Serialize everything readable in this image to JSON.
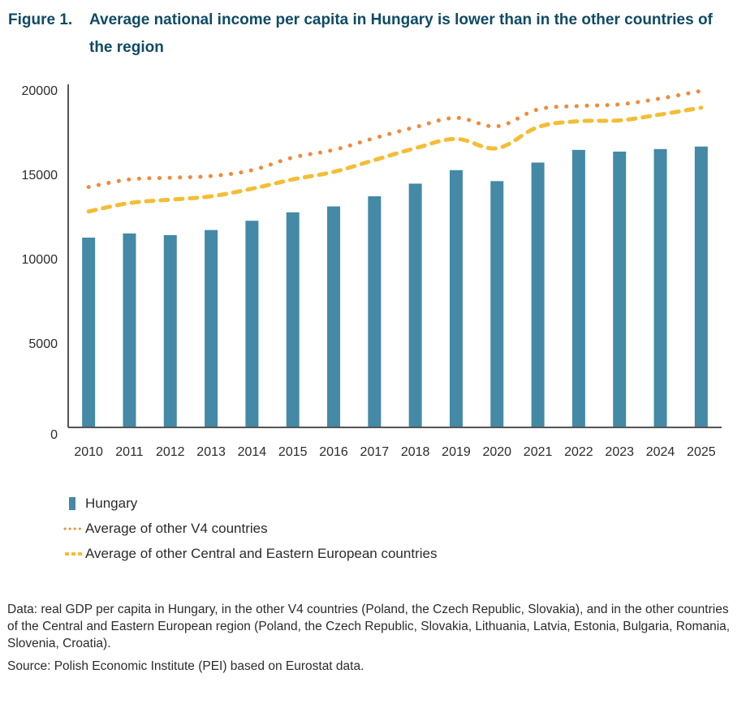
{
  "figure": {
    "number": "Figure 1.",
    "title": "Average national income per capita in Hungary is lower than in the other countries of the region"
  },
  "colors": {
    "hungary": "#4489a6",
    "v4": "#f08a3c",
    "cee": "#f3bd35",
    "axis": "#555555",
    "title": "#0f4a64"
  },
  "chart_data": {
    "type": "bar",
    "title": "Average national income per capita in Hungary is lower than in the other countries of the region",
    "xlabel": "",
    "ylabel": "",
    "ylim": [
      0,
      20000
    ],
    "yticks": [
      0,
      5000,
      10000,
      15000,
      20000
    ],
    "grid": false,
    "legend_position": "bottom-left",
    "categories": [
      "2010",
      "2011",
      "2012",
      "2013",
      "2014",
      "2015",
      "2016",
      "2017",
      "2018",
      "2019",
      "2020",
      "2021",
      "2022",
      "2023",
      "2024",
      "2025"
    ],
    "series": [
      {
        "name": "Hungary",
        "type": "bar",
        "values": [
          11250,
          11500,
          11400,
          11700,
          12250,
          12750,
          13100,
          13700,
          14450,
          15250,
          14600,
          15700,
          16450,
          16350,
          16500,
          16650
        ]
      },
      {
        "name": "Average of other V4 countries",
        "type": "line",
        "style": "dotted",
        "values": [
          14250,
          14700,
          14800,
          14900,
          15250,
          16000,
          16450,
          17150,
          17800,
          18350,
          17850,
          18850,
          19050,
          19150,
          19500,
          19950
        ]
      },
      {
        "name": "Average of other Central and Eastern European countries",
        "type": "line",
        "style": "dashed",
        "values": [
          12800,
          13300,
          13500,
          13700,
          14150,
          14700,
          15150,
          15850,
          16550,
          17100,
          16550,
          17800,
          18150,
          18200,
          18550,
          18950
        ]
      }
    ]
  },
  "legend": [
    {
      "label": "Hungary"
    },
    {
      "label": "Average of other V4 countries"
    },
    {
      "label": "Average of other Central and Eastern European countries"
    }
  ],
  "notes": {
    "data": "Data: real GDP per capita in Hungary, in the other V4 countries (Poland, the Czech Republic, Slovakia), and in the other countries of the Central and Eastern European region (Poland, the Czech Republic, Slovakia, Lithuania, Latvia, Estonia, Bulgaria, Romania, Slovenia, Croatia).",
    "source": "Source: Polish Economic Institute (PEI) based on Eurostat data."
  }
}
